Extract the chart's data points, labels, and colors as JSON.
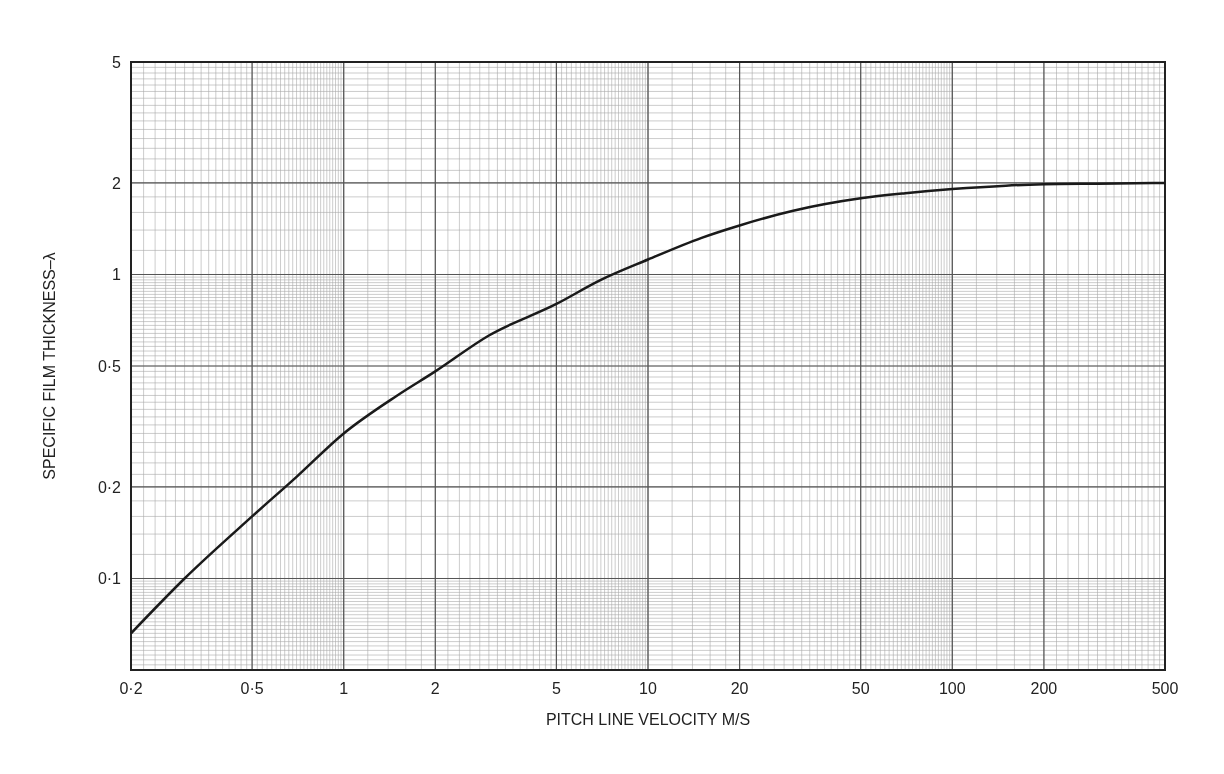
{
  "chart_data": {
    "type": "line",
    "xlabel": "PITCH LINE VELOCITY M/S",
    "ylabel": "SPECIFIC FILM THICKNESS–λ",
    "log": "xy",
    "grid": true,
    "marker": "none",
    "line_style": "solid",
    "xlim": [
      0.2,
      500
    ],
    "ylim": [
      0.05,
      5
    ],
    "xticks": [
      {
        "value": 0.2,
        "label": "0·2"
      },
      {
        "value": 0.5,
        "label": "0·5"
      },
      1,
      2,
      5,
      10,
      20,
      50,
      100,
      200,
      500
    ],
    "yticks": [
      {
        "value": 0.1,
        "label": "0·1"
      },
      {
        "value": 0.2,
        "label": "0·2"
      },
      {
        "value": 0.5,
        "label": "0·5"
      },
      1,
      2,
      5
    ],
    "series": [
      {
        "color": "#1a1a1a",
        "x": [
          0.2,
          0.3,
          0.5,
          0.7,
          1,
          1.5,
          2,
          3,
          5,
          7,
          10,
          15,
          20,
          30,
          50,
          70,
          100,
          150,
          200,
          300,
          500
        ],
        "values": [
          0.066,
          0.1,
          0.16,
          0.216,
          0.3,
          0.4,
          0.48,
          0.63,
          0.8,
          0.96,
          1.12,
          1.32,
          1.45,
          1.62,
          1.78,
          1.85,
          1.91,
          1.96,
          1.98,
          1.99,
          2.0
        ]
      }
    ]
  }
}
